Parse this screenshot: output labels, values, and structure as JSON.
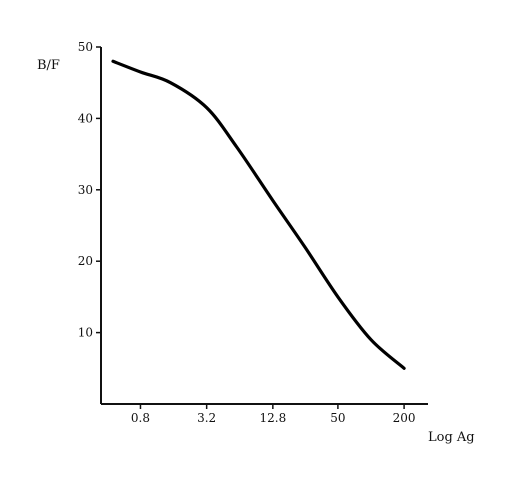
{
  "chart_data": {
    "type": "line",
    "xlabel": "Log Ag",
    "ylabel": "B/F",
    "x_scale": "log",
    "x_ticks": [
      "0.8",
      "3.2",
      "12.8",
      "50",
      "200"
    ],
    "y_ticks": [
      "10",
      "20",
      "30",
      "40",
      "50"
    ],
    "xlim": [
      0.35,
      330
    ],
    "ylim": [
      0,
      50
    ],
    "grid": false,
    "series": [
      {
        "x": [
          0.45,
          0.8,
          1.5,
          3.2,
          6,
          12.8,
          25,
          50,
          100,
          200
        ],
        "y": [
          48,
          46.5,
          45,
          41.5,
          36,
          28.5,
          22,
          15,
          9,
          5
        ]
      }
    ]
  }
}
